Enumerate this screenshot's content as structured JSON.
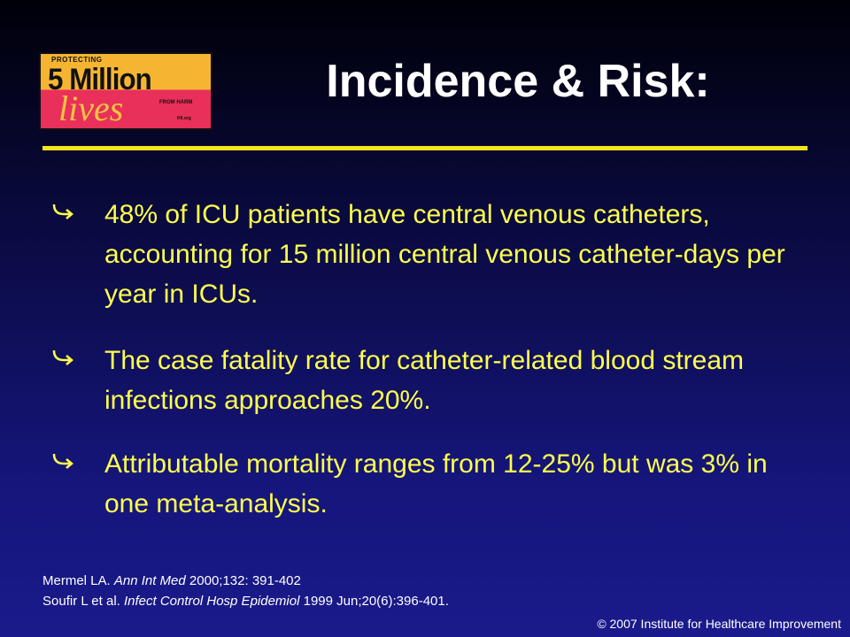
{
  "logo": {
    "top": "PROTECTING",
    "main": "5 Million",
    "script": "lives",
    "side": "FROM HARM",
    "url": "IHI.org"
  },
  "title": "Incidence & Risk:",
  "bullets": [
    "48% of ICU patients have central venous catheters, accounting for 15 million central venous catheter-days per year in ICUs.",
    "The case fatality rate for catheter-related blood stream infections approaches 20%.",
    "Attributable mortality ranges from 12-25% but was 3% in one meta-analysis."
  ],
  "references": [
    {
      "author": "Mermel LA.",
      "journal": "Ann Int Med",
      "citation": "2000;132: 391-402"
    },
    {
      "author": "Soufir L et al.",
      "journal": "Infect Control Hosp Epidemiol",
      "citation": "1999 Jun;20(6):396-401."
    }
  ],
  "copyright": "© 2007 Institute for Healthcare Improvement"
}
